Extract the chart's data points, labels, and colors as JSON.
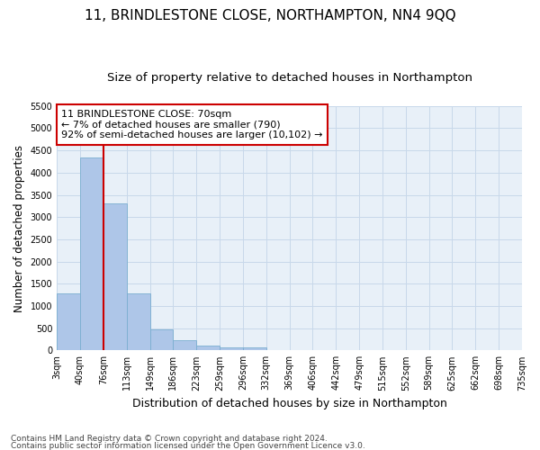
{
  "title": "11, BRINDLESTONE CLOSE, NORTHAMPTON, NN4 9QQ",
  "subtitle": "Size of property relative to detached houses in Northampton",
  "xlabel": "Distribution of detached houses by size in Northampton",
  "ylabel": "Number of detached properties",
  "footer_line1": "Contains HM Land Registry data © Crown copyright and database right 2024.",
  "footer_line2": "Contains public sector information licensed under the Open Government Licence v3.0.",
  "bar_values": [
    1280,
    4350,
    3300,
    1280,
    480,
    230,
    100,
    60,
    60,
    0,
    0,
    0,
    0,
    0,
    0,
    0,
    0,
    0,
    0,
    0
  ],
  "x_labels": [
    "3sqm",
    "40sqm",
    "76sqm",
    "113sqm",
    "149sqm",
    "186sqm",
    "223sqm",
    "259sqm",
    "296sqm",
    "332sqm",
    "369sqm",
    "406sqm",
    "442sqm",
    "479sqm",
    "515sqm",
    "552sqm",
    "589sqm",
    "625sqm",
    "662sqm",
    "698sqm",
    "735sqm"
  ],
  "bar_color": "#aec6e8",
  "bar_edge_color": "#7aaed0",
  "vline_color": "#cc0000",
  "annotation_text": "11 BRINDLESTONE CLOSE: 70sqm\n← 7% of detached houses are smaller (790)\n92% of semi-detached houses are larger (10,102) →",
  "annotation_box_color": "#cc0000",
  "ylim": [
    0,
    5500
  ],
  "yticks": [
    0,
    500,
    1000,
    1500,
    2000,
    2500,
    3000,
    3500,
    4000,
    4500,
    5000,
    5500
  ],
  "grid_color": "#c8d8ea",
  "bg_color": "#e8f0f8",
  "title_fontsize": 11,
  "subtitle_fontsize": 9.5,
  "xlabel_fontsize": 9,
  "ylabel_fontsize": 8.5,
  "tick_fontsize": 7,
  "annotation_fontsize": 8,
  "footer_fontsize": 6.5
}
